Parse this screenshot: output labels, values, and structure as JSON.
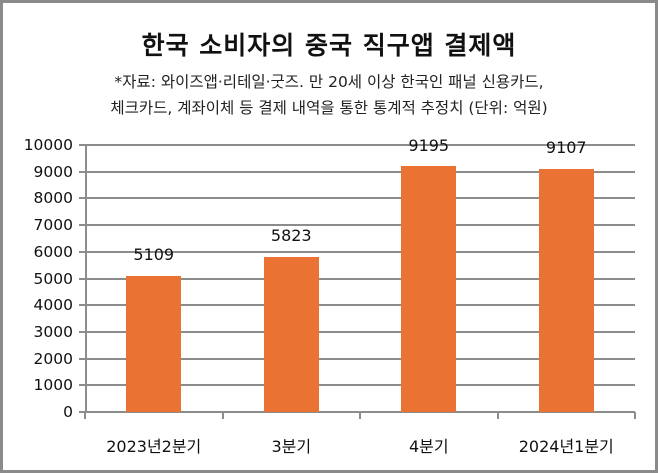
{
  "header": {
    "title": "한국 소비자의 중국 직구앱 결제액",
    "subtitle_line1": "*자료: 와이즈앱·리테일·굿즈. 만 20세 이상 한국인 패널 신용카드,",
    "subtitle_line2": "체크카드, 계좌이체 등 결제 내역을 통한 통계적 추정치 (단위: 억원)"
  },
  "colors": {
    "bar": "#ea7233",
    "grid": "#8c8c8c",
    "border": "#8a8a8a"
  },
  "chart_data": {
    "type": "bar",
    "title": "한국 소비자의 중국 직구앱 결제액",
    "subtitle": "*자료: 와이즈앱·리테일·굿즈. 만 20세 이상 한국인 패널 신용카드, 체크카드, 계좌이체 등 결제 내역을 통한 통계적 추정치 (단위: 억원)",
    "categories": [
      "2023년2분기",
      "3분기",
      "4분기",
      "2024년1분기"
    ],
    "values": [
      5109,
      5823,
      9195,
      9107
    ],
    "data_labels": [
      "5109",
      "5823",
      "9195",
      "9107"
    ],
    "xlabel": "",
    "ylabel": "",
    "ylim": [
      0,
      10000
    ],
    "yticks": [
      "0",
      "1000",
      "2000",
      "3000",
      "4000",
      "5000",
      "6000",
      "7000",
      "8000",
      "9000",
      "10000"
    ],
    "grid": true,
    "legend": "none"
  }
}
